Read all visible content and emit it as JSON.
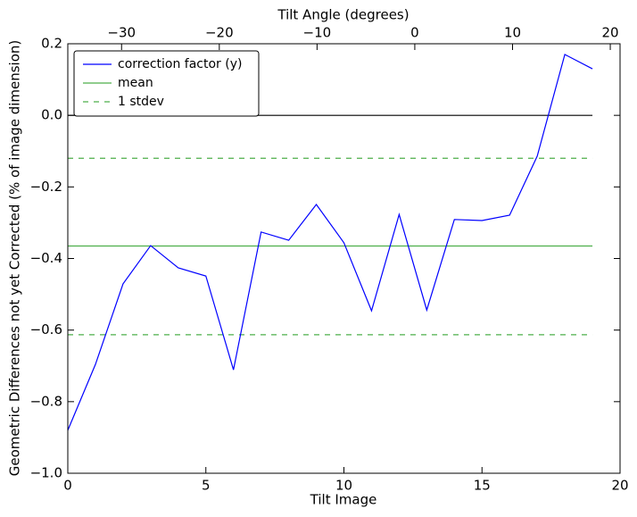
{
  "chart_data": {
    "type": "line",
    "xlabel": "Tilt Image",
    "ylabel": "Geometric Differences not yet Corrected (% of image dimension)",
    "x2label": "Tilt Angle (degrees)",
    "x": [
      0,
      1,
      2,
      3,
      4,
      5,
      6,
      7,
      8,
      9,
      10,
      11,
      12,
      13,
      14,
      15,
      16,
      17,
      18,
      19
    ],
    "series": [
      {
        "name": "correction factor (y)",
        "color": "#0000ff",
        "values": [
          -0.88,
          -0.696,
          -0.471,
          -0.364,
          -0.426,
          -0.449,
          -0.711,
          -0.326,
          -0.349,
          -0.249,
          -0.356,
          -0.546,
          -0.277,
          -0.544,
          -0.291,
          -0.294,
          -0.279,
          -0.114,
          0.17,
          0.13
        ]
      }
    ],
    "hlines": [
      {
        "name": "mean",
        "color": "#4daf4a",
        "style": "solid",
        "values": [
          -0.365
        ]
      },
      {
        "name": "1 stdev",
        "color": "#4daf4a",
        "style": "dashed",
        "values": [
          -0.12,
          -0.613
        ]
      },
      {
        "color": "#000000",
        "style": "solid",
        "values": [
          0
        ]
      }
    ],
    "xlim": [
      0,
      20
    ],
    "xticks": [
      0,
      5,
      10,
      15,
      20
    ],
    "ylim": [
      -1,
      0.2
    ],
    "yticks": [
      {
        "value": -1,
        "label": "−1.0"
      },
      {
        "value": -0.8,
        "label": "−0.8"
      },
      {
        "value": -0.6,
        "label": "−0.6"
      },
      {
        "value": -0.4,
        "label": "−0.4"
      },
      {
        "value": -0.2,
        "label": "−0.2"
      },
      {
        "value": 0,
        "label": "0.0"
      },
      0.2
    ],
    "x2lim": [
      -35.5,
      21.0
    ],
    "x2ticks": [
      {
        "value": -30,
        "label": "−30"
      },
      {
        "value": -20,
        "label": "−20"
      },
      {
        "value": -10,
        "label": "−10"
      },
      0,
      10,
      20
    ],
    "legend": "upper left"
  }
}
